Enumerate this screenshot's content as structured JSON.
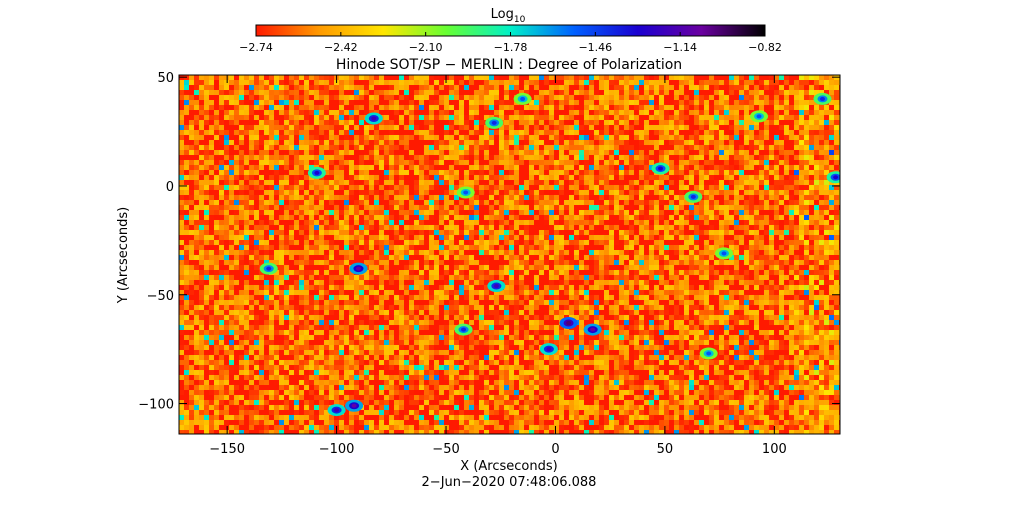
{
  "colorbar": {
    "label_main": "Log",
    "label_sub": "10",
    "ticks": [
      -2.74,
      -2.42,
      -2.1,
      -1.78,
      -1.46,
      -1.14,
      -0.82
    ],
    "tick_labels": [
      "−2.74",
      "−2.42",
      "−2.10",
      "−1.78",
      "−1.46",
      "−1.14",
      "−0.82"
    ],
    "range": [
      -2.74,
      -0.82
    ],
    "colormap": [
      "#ff1a00",
      "#ff9a00",
      "#ffe600",
      "#66ff33",
      "#00f0c8",
      "#0060ff",
      "#1a00d0",
      "#6a00a0",
      "#000000"
    ]
  },
  "chart_data": {
    "type": "heatmap",
    "title": "Hinode SOT/SP − MERLIN : Degree of Polarization",
    "xlabel": "X (Arcseconds)",
    "ylabel": "Y (Arcseconds)",
    "xlim": [
      -172,
      130
    ],
    "ylim": [
      -114,
      51
    ],
    "xticks": [
      -150,
      -100,
      -50,
      0,
      50,
      100
    ],
    "xtick_labels": [
      "−150",
      "−100",
      "−50",
      "0",
      "50",
      "100"
    ],
    "yticks": [
      -100,
      -50,
      0,
      50
    ],
    "ytick_labels": [
      "−100",
      "−50",
      "0",
      "50"
    ],
    "grid": false,
    "background_level": -2.6,
    "bright_features": [
      {
        "x": -83,
        "y": 31,
        "value": -1.2
      },
      {
        "x": -109,
        "y": 6,
        "value": -1.3
      },
      {
        "x": -90,
        "y": -38,
        "value": -1.1
      },
      {
        "x": -131,
        "y": -38,
        "value": -1.4
      },
      {
        "x": -41,
        "y": -3,
        "value": -1.5
      },
      {
        "x": -27,
        "y": -46,
        "value": -1.2
      },
      {
        "x": -28,
        "y": 29,
        "value": -1.4
      },
      {
        "x": 6,
        "y": -63,
        "value": -1.0
      },
      {
        "x": 17,
        "y": -66,
        "value": -1.1
      },
      {
        "x": -3,
        "y": -75,
        "value": -1.2
      },
      {
        "x": 48,
        "y": 8,
        "value": -1.3
      },
      {
        "x": 63,
        "y": -5,
        "value": -1.4
      },
      {
        "x": 77,
        "y": -31,
        "value": -1.5
      },
      {
        "x": -92,
        "y": -101,
        "value": -1.1
      },
      {
        "x": -100,
        "y": -103,
        "value": -1.2
      },
      {
        "x": 128,
        "y": 4,
        "value": -1.3
      },
      {
        "x": 122,
        "y": 40,
        "value": -1.4
      },
      {
        "x": -15,
        "y": 40,
        "value": -1.5
      },
      {
        "x": 93,
        "y": 32,
        "value": -1.5
      },
      {
        "x": 70,
        "y": -77,
        "value": -1.5
      },
      {
        "x": -42,
        "y": -66,
        "value": -1.4
      }
    ]
  },
  "footer": {
    "timestamp": "2−Jun−2020 07:48:06.088"
  }
}
